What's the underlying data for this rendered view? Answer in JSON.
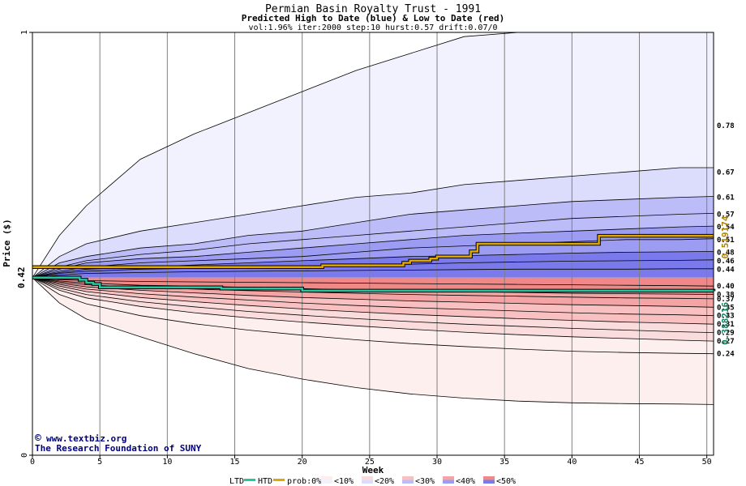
{
  "header": {
    "title": "Permian Basin Royalty Trust - 1991",
    "subtitle": "Predicted High to Date (blue) &  Low to Date (red)",
    "params": "vol:1.96% iter:2000 step:10 hurst:0.57 drift:0.07/0"
  },
  "credit": {
    "copyright_symbol": "©",
    "url": "www.textbiz.org",
    "org": "The Research Foundation of SUNY"
  },
  "legend": {
    "ltd_label": "LTD",
    "htd_label": "HTD",
    "prob_label": "prob:0%",
    "bins": [
      "<10%",
      "<20%",
      "<30%",
      "<40%",
      "<50%"
    ],
    "colors": {
      "ltd": "#20c8a0",
      "htd": "#e0a800",
      "blue_bins": [
        "#f2f2fe",
        "#dcdcfc",
        "#bcbcf8",
        "#9c9cf2",
        "#7a7aec"
      ],
      "red_bins": [
        "#fdefee",
        "#fbdcdc",
        "#f8c0c0",
        "#f4a4a4",
        "#f08888"
      ]
    }
  },
  "chart_data": {
    "type": "area",
    "title": "Permian Basin Royalty Trust - 1991",
    "subtitle": "Predicted High to Date (blue) &  Low to Date (red)",
    "xlabel": "Week",
    "ylabel": "Price ($)",
    "xlim": [
      0,
      50.5
    ],
    "ylim": [
      0,
      1
    ],
    "x_ticks": [
      0,
      5,
      10,
      15,
      20,
      25,
      30,
      35,
      40,
      45,
      50
    ],
    "y_ticks": [
      0,
      1
    ],
    "start_price_label": "0.42",
    "start_price": 0.42,
    "htd_final_label": "0.519174",
    "htd_final": 0.519174,
    "ltd_final_label": "0.388216",
    "ltd_final": 0.388216,
    "grid": true,
    "x": [
      0,
      2,
      4,
      8,
      12,
      16,
      20,
      24,
      28,
      32,
      36,
      40,
      44,
      48,
      50.5
    ],
    "htd_quantile_bands": [
      {
        "label": "0.78",
        "level": 0.78,
        "values": [
          0.42,
          0.52,
          0.59,
          0.7,
          0.76,
          0.81,
          0.86,
          0.91,
          0.95,
          0.99,
          1.03,
          1.07,
          1.1,
          1.13,
          1.14
        ]
      },
      {
        "label": "0.67",
        "level": 0.67,
        "values": [
          0.42,
          0.47,
          0.5,
          0.53,
          0.55,
          0.57,
          0.59,
          0.61,
          0.62,
          0.64,
          0.65,
          0.66,
          0.67,
          0.68,
          0.68
        ]
      },
      {
        "label": "0.61",
        "level": 0.61,
        "values": [
          0.42,
          0.455,
          0.47,
          0.49,
          0.5,
          0.52,
          0.53,
          0.55,
          0.57,
          0.58,
          0.59,
          0.6,
          0.605,
          0.61,
          0.612
        ]
      },
      {
        "label": "0.57",
        "level": 0.57,
        "values": [
          0.42,
          0.445,
          0.46,
          0.475,
          0.485,
          0.5,
          0.51,
          0.52,
          0.53,
          0.54,
          0.55,
          0.56,
          0.565,
          0.57,
          0.572
        ]
      },
      {
        "label": "0.54",
        "level": 0.54,
        "values": [
          0.42,
          0.44,
          0.455,
          0.465,
          0.47,
          0.48,
          0.49,
          0.5,
          0.51,
          0.52,
          0.525,
          0.53,
          0.535,
          0.54,
          0.542
        ]
      },
      {
        "label": "0.51",
        "level": 0.51,
        "values": [
          0.42,
          0.435,
          0.445,
          0.455,
          0.46,
          0.465,
          0.47,
          0.48,
          0.49,
          0.495,
          0.5,
          0.505,
          0.51,
          0.51,
          0.512
        ]
      },
      {
        "label": "0.48",
        "level": 0.48,
        "values": [
          0.42,
          0.432,
          0.44,
          0.445,
          0.45,
          0.455,
          0.46,
          0.465,
          0.47,
          0.472,
          0.475,
          0.478,
          0.48,
          0.481,
          0.482
        ]
      },
      {
        "label": "0.46",
        "level": 0.46,
        "values": [
          0.42,
          0.43,
          0.435,
          0.44,
          0.442,
          0.445,
          0.448,
          0.45,
          0.452,
          0.455,
          0.457,
          0.459,
          0.46,
          0.461,
          0.462
        ]
      },
      {
        "label": "0.44",
        "level": 0.44,
        "values": [
          0.42,
          0.426,
          0.43,
          0.432,
          0.434,
          0.435,
          0.436,
          0.437,
          0.438,
          0.439,
          0.44,
          0.44,
          0.44,
          0.441,
          0.441
        ]
      }
    ],
    "ltd_quantile_bands": [
      {
        "label": "0.40",
        "level": 0.4,
        "values": [
          0.42,
          0.415,
          0.413,
          0.411,
          0.41,
          0.409,
          0.408,
          0.407,
          0.406,
          0.405,
          0.404,
          0.403,
          0.402,
          0.401,
          0.4
        ]
      },
      {
        "label": "0.38",
        "level": 0.38,
        "values": [
          0.42,
          0.412,
          0.407,
          0.402,
          0.4,
          0.397,
          0.394,
          0.391,
          0.389,
          0.387,
          0.385,
          0.383,
          0.382,
          0.381,
          0.38
        ]
      },
      {
        "label": "0.37",
        "level": 0.37,
        "values": [
          0.42,
          0.41,
          0.403,
          0.397,
          0.393,
          0.389,
          0.386,
          0.383,
          0.38,
          0.378,
          0.376,
          0.374,
          0.372,
          0.371,
          0.37
        ]
      },
      {
        "label": "0.35",
        "level": 0.35,
        "values": [
          0.42,
          0.407,
          0.398,
          0.39,
          0.384,
          0.378,
          0.373,
          0.369,
          0.365,
          0.362,
          0.359,
          0.356,
          0.354,
          0.352,
          0.35
        ]
      },
      {
        "label": "0.33",
        "level": 0.33,
        "values": [
          0.42,
          0.404,
          0.393,
          0.382,
          0.374,
          0.367,
          0.36,
          0.354,
          0.349,
          0.345,
          0.341,
          0.337,
          0.334,
          0.332,
          0.33
        ]
      },
      {
        "label": "0.31",
        "level": 0.31,
        "values": [
          0.42,
          0.4,
          0.387,
          0.373,
          0.363,
          0.354,
          0.346,
          0.339,
          0.333,
          0.328,
          0.323,
          0.319,
          0.315,
          0.312,
          0.31
        ]
      },
      {
        "label": "0.29",
        "level": 0.29,
        "values": [
          0.42,
          0.395,
          0.38,
          0.363,
          0.351,
          0.34,
          0.331,
          0.323,
          0.316,
          0.31,
          0.305,
          0.3,
          0.296,
          0.292,
          0.29
        ]
      },
      {
        "label": "0.27",
        "level": 0.27,
        "values": [
          0.42,
          0.39,
          0.372,
          0.352,
          0.337,
          0.325,
          0.315,
          0.306,
          0.298,
          0.291,
          0.285,
          0.28,
          0.276,
          0.272,
          0.27
        ]
      },
      {
        "label": "0.24",
        "level": 0.24,
        "values": [
          0.42,
          0.38,
          0.358,
          0.33,
          0.311,
          0.296,
          0.284,
          0.273,
          0.264,
          0.257,
          0.251,
          0.246,
          0.243,
          0.241,
          0.24
        ]
      },
      {
        "label": "",
        "level": 0.12,
        "values": [
          0.42,
          0.36,
          0.322,
          0.28,
          0.24,
          0.205,
          0.18,
          0.16,
          0.145,
          0.135,
          0.128,
          0.124,
          0.122,
          0.121,
          0.12
        ]
      }
    ],
    "htd_path": {
      "x": [
        0,
        6,
        15,
        21,
        21.5,
        26,
        27.5,
        28,
        29.5,
        30,
        32.5,
        33,
        41.5,
        42,
        50.5
      ],
      "y": [
        0.445,
        0.445,
        0.445,
        0.445,
        0.449,
        0.449,
        0.455,
        0.46,
        0.465,
        0.47,
        0.482,
        0.5,
        0.5,
        0.519,
        0.519
      ]
    },
    "ltd_path": {
      "x": [
        0,
        3,
        3.5,
        4,
        4.5,
        5,
        12,
        14,
        20,
        50.5
      ],
      "y": [
        0.42,
        0.42,
        0.415,
        0.408,
        0.405,
        0.397,
        0.397,
        0.394,
        0.389,
        0.388
      ]
    }
  }
}
